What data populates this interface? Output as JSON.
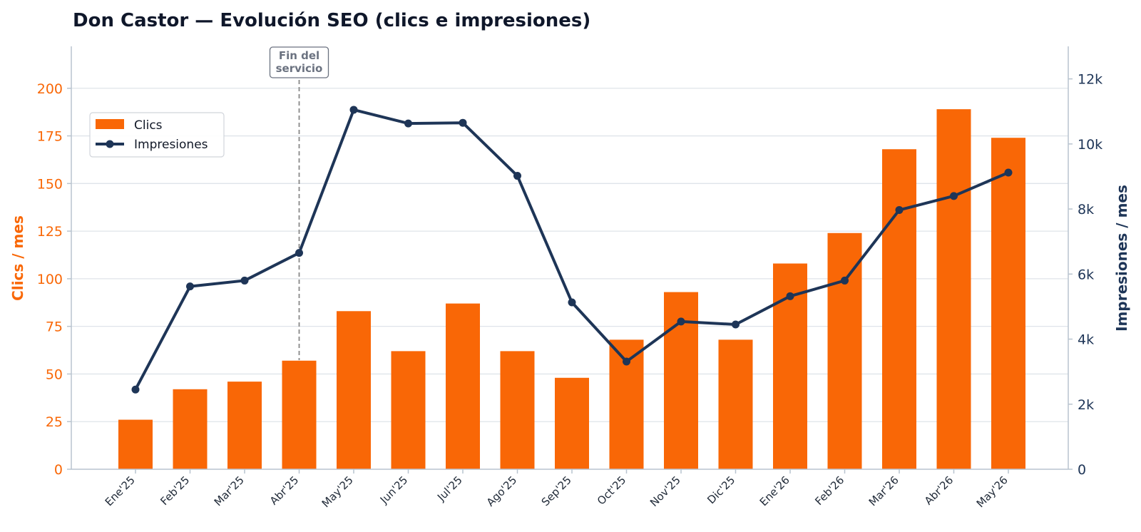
{
  "chart_data": {
    "type": "bar",
    "title": "Don Castor — Evolución SEO (clics e impresiones)",
    "categories": [
      "Ene'25",
      "Feb'25",
      "Mar'25",
      "Abr'25",
      "May'25",
      "Jun'25",
      "Jul'25",
      "Ago'25",
      "Sep'25",
      "Oct'25",
      "Nov'25",
      "Dic'25",
      "Ene'26",
      "Feb'26",
      "Mar'26",
      "Abr'26",
      "May'26"
    ],
    "series": [
      {
        "name": "Clics",
        "type": "bar",
        "axis": "left",
        "color": "#f96706",
        "values": [
          26,
          42,
          46,
          57,
          83,
          62,
          87,
          62,
          48,
          68,
          93,
          68,
          108,
          124,
          168,
          189,
          174
        ]
      },
      {
        "name": "Impresiones",
        "type": "line",
        "axis": "right",
        "color": "#1e3557",
        "values": [
          2450,
          5620,
          5800,
          6650,
          11050,
          10630,
          10650,
          9020,
          5130,
          3310,
          4540,
          4450,
          5320,
          5800,
          7970,
          8400,
          9120
        ]
      }
    ],
    "ylabel": "Clics / mes",
    "y2label": "Impresiones / mes",
    "ylim": [
      0,
      222
    ],
    "y2lim": [
      0,
      13000
    ],
    "yticks": [
      0,
      25,
      50,
      75,
      100,
      125,
      150,
      175,
      200
    ],
    "y2ticks": [
      0,
      2000,
      4000,
      6000,
      8000,
      10000,
      12000
    ],
    "y2ticklabels": [
      "0",
      "2k",
      "4k",
      "6k",
      "8k",
      "10k",
      "12k"
    ],
    "grid": true,
    "legend": "upper-left",
    "annotation": {
      "text_lines": [
        "Fin del",
        "servicio"
      ],
      "at_category": "Abr'25"
    }
  }
}
